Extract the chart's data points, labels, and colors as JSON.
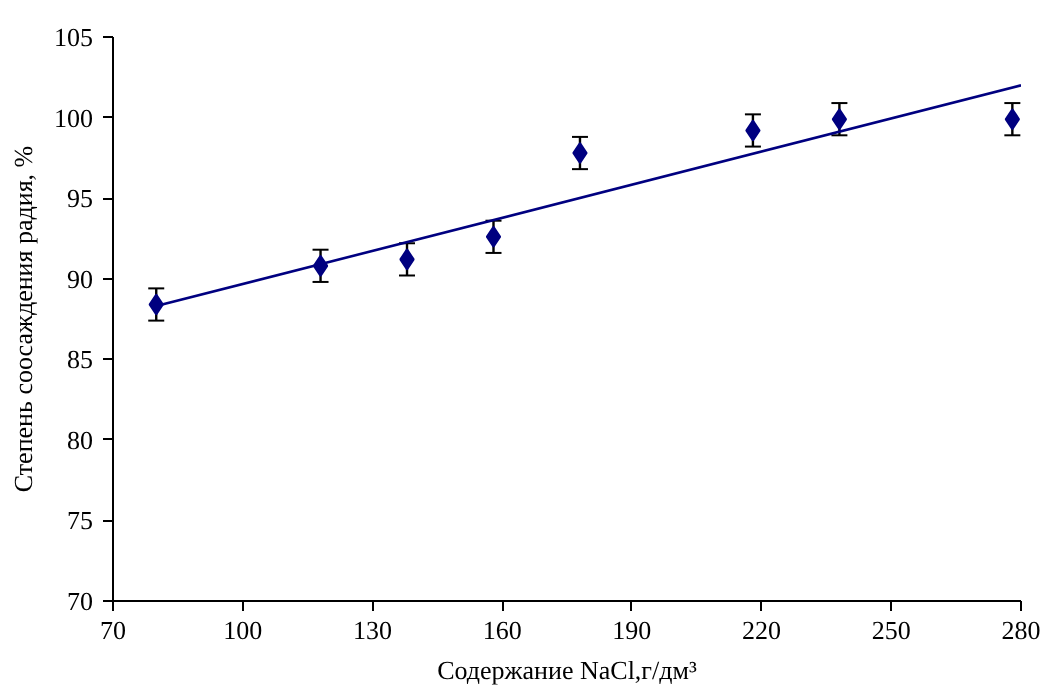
{
  "chart_data": {
    "type": "scatter",
    "xlabel": "Содержание NaCl,г/дм³",
    "ylabel": "Степень соосаждения радия, %",
    "xlim": [
      70,
      280
    ],
    "ylim": [
      70,
      105
    ],
    "xticks": [
      70,
      100,
      130,
      160,
      190,
      220,
      250,
      280
    ],
    "yticks": [
      70,
      75,
      80,
      85,
      90,
      95,
      100,
      105
    ],
    "grid": false,
    "marker": "diamond",
    "series": [
      {
        "color": "#000080",
        "x": [
          80,
          118,
          138,
          158,
          178,
          218,
          238,
          278
        ],
        "values": [
          88.4,
          90.8,
          91.2,
          92.6,
          97.8,
          99.2,
          99.9,
          99.9
        ],
        "errors": [
          1,
          1,
          1,
          1,
          1,
          1,
          1,
          1
        ]
      },
      {
        "type": "line",
        "color": "#000080",
        "x": [
          80,
          280
        ],
        "values": [
          88.3,
          102.0
        ],
        "line_style": "solid",
        "marker": "none"
      }
    ]
  }
}
